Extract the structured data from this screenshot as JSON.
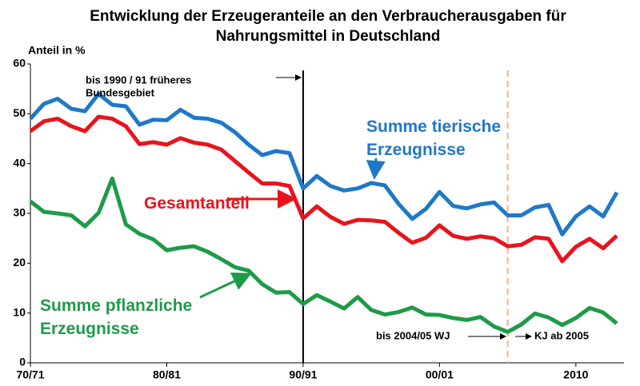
{
  "chart_data": {
    "type": "line",
    "title": "Entwicklung der Erzeugeranteile an den Verbraucherausgaben für Nahrungsmittel in Deutschland",
    "y_label": "Anteil in %",
    "x": [
      1970,
      1971,
      1972,
      1973,
      1974,
      1975,
      1976,
      1977,
      1978,
      1979,
      1980,
      1981,
      1982,
      1983,
      1984,
      1985,
      1986,
      1987,
      1988,
      1989,
      1990,
      1991,
      1992,
      1993,
      1994,
      1995,
      1996,
      1997,
      1998,
      1999,
      2000,
      2001,
      2002,
      2003,
      2004,
      2005,
      2006,
      2007,
      2008,
      2009,
      2010,
      2011,
      2012,
      2013
    ],
    "xlim": [
      1970,
      2013
    ],
    "xticks": [
      {
        "value": 1970,
        "label": "70/71"
      },
      {
        "value": 1980,
        "label": "80/81"
      },
      {
        "value": 1990,
        "label": "90/91"
      },
      {
        "value": 2000,
        "label": "00/01"
      },
      2010
    ],
    "ylim": [
      0,
      60
    ],
    "yticks": [
      0,
      10,
      20,
      30,
      40,
      50,
      60
    ],
    "grid": false,
    "series": [
      {
        "name": "Summe tierische Erzeugnisse",
        "color": "#1f78c8",
        "values": [
          49,
          52,
          53,
          51,
          50.5,
          54,
          51.8,
          51.5,
          47.8,
          48.8,
          48.7,
          50.8,
          49.2,
          49,
          48.2,
          46.3,
          43.8,
          41.7,
          42.5,
          42.1,
          35,
          37.5,
          35.5,
          34.6,
          35,
          36.1,
          35.6,
          31.9,
          28.9,
          30.9,
          34.3,
          31.5,
          31,
          31.8,
          32.2,
          29.6,
          29.6,
          31.2,
          31.7,
          25.8,
          29.4,
          31.4,
          29.4,
          34.2
        ]
      },
      {
        "name": "Gesamtanteil",
        "color": "#e8141c",
        "values": [
          46.5,
          48.5,
          49,
          47.5,
          46.5,
          49.4,
          49,
          47.5,
          43.9,
          44.3,
          43.8,
          45.1,
          44.2,
          43.8,
          42.8,
          40.5,
          38.2,
          36,
          36,
          35.5,
          29,
          31.4,
          29.3,
          27.9,
          28.7,
          28.6,
          28.3,
          26.1,
          24.1,
          25.1,
          27.6,
          25.5,
          24.9,
          25.4,
          25,
          23.4,
          23.7,
          25.2,
          24.9,
          20.4,
          23.3,
          24.9,
          23,
          25.5
        ]
      },
      {
        "name": "Summe pflanzliche Erzeugnisse",
        "color": "#1e9b48",
        "values": [
          32.4,
          30.3,
          30,
          29.6,
          27.4,
          30.1,
          37,
          27.8,
          25.9,
          24.8,
          22.6,
          23.1,
          23.4,
          22.3,
          20.8,
          19.2,
          18.5,
          15.8,
          14.1,
          14.2,
          11.8,
          13.6,
          12.3,
          10.9,
          13.2,
          10.6,
          9.7,
          10.2,
          11.1,
          9.7,
          9.6,
          9.0,
          8.6,
          9.2,
          7.3,
          6.2,
          7.7,
          9.9,
          9.1,
          7.6,
          9.0,
          11.0,
          10.1,
          7.9
        ]
      }
    ],
    "markers": [
      {
        "x": 1990,
        "color": "#000000",
        "dashed": false
      },
      {
        "x": 2005,
        "color": "#f4b183",
        "dashed": true
      }
    ],
    "annotations": [
      "bis 1990 / 91 früheres",
      "Bundesgebiet",
      "bis 2004/05  WJ",
      "KJ  ab 2005"
    ]
  }
}
